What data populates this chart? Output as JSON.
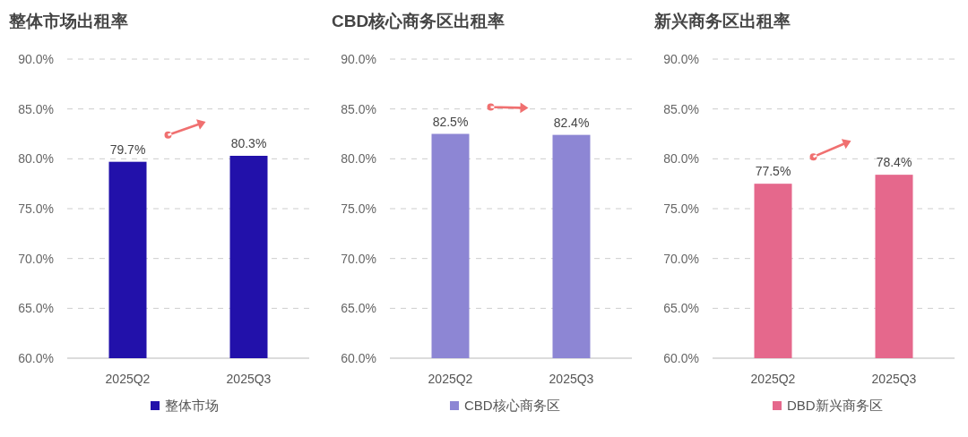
{
  "chart_data": [
    {
      "type": "bar",
      "title": "整体市场出租率",
      "categories": [
        "2025Q2",
        "2025Q3"
      ],
      "series": [
        {
          "name": "整体市场",
          "color": "#2211aa",
          "values": [
            79.7,
            80.3
          ],
          "value_labels": [
            "79.7%",
            "80.3%"
          ]
        }
      ],
      "ylim": [
        60,
        90
      ],
      "yticks": [
        {
          "value": 60,
          "label": "60.0%"
        },
        {
          "value": 65,
          "label": "65.0%"
        },
        {
          "value": 70,
          "label": "70.0%"
        },
        {
          "value": 75,
          "label": "75.0%"
        },
        {
          "value": 80,
          "label": "80.0%"
        },
        {
          "value": 85,
          "label": "85.0%"
        },
        {
          "value": 90,
          "label": "90.0%"
        }
      ],
      "grid": "y",
      "legend": "bottom"
    },
    {
      "type": "bar",
      "title": "CBD核心商务区出租率",
      "categories": [
        "2025Q2",
        "2025Q3"
      ],
      "series": [
        {
          "name": "CBD核心商务区",
          "color": "#8d86d4",
          "values": [
            82.5,
            82.4
          ],
          "value_labels": [
            "82.5%",
            "82.4%"
          ]
        }
      ],
      "ylim": [
        60,
        90
      ],
      "yticks": [
        {
          "value": 60,
          "label": "60.0%"
        },
        {
          "value": 65,
          "label": "65.0%"
        },
        {
          "value": 70,
          "label": "70.0%"
        },
        {
          "value": 75,
          "label": "75.0%"
        },
        {
          "value": 80,
          "label": "80.0%"
        },
        {
          "value": 85,
          "label": "85.0%"
        },
        {
          "value": 90,
          "label": "90.0%"
        }
      ],
      "grid": "y",
      "legend": "bottom"
    },
    {
      "type": "bar",
      "title": "新兴商务区出租率",
      "categories": [
        "2025Q2",
        "2025Q3"
      ],
      "series": [
        {
          "name": "DBD新兴商务区",
          "color": "#e5688c",
          "values": [
            77.5,
            78.4
          ],
          "value_labels": [
            "77.5%",
            "78.4%"
          ]
        }
      ],
      "ylim": [
        60,
        90
      ],
      "yticks": [
        {
          "value": 60,
          "label": "60.0%"
        },
        {
          "value": 65,
          "label": "65.0%"
        },
        {
          "value": 70,
          "label": "70.0%"
        },
        {
          "value": 75,
          "label": "75.0%"
        },
        {
          "value": 80,
          "label": "80.0%"
        },
        {
          "value": 85,
          "label": "85.0%"
        },
        {
          "value": 90,
          "label": "90.0%"
        }
      ],
      "grid": "y",
      "legend": "bottom"
    }
  ]
}
